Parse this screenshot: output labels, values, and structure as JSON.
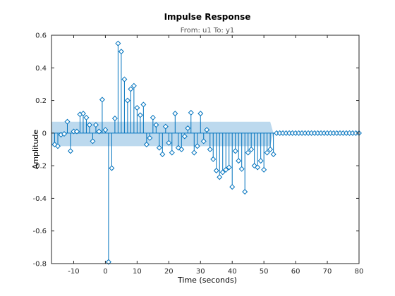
{
  "chart_data": {
    "type": "stem",
    "title": "Impulse Response",
    "subtitle": "From: u1  To: y1",
    "xlabel": "Time (seconds)",
    "ylabel": "Amplitude",
    "xlim": [
      -17,
      80
    ],
    "ylim": [
      -0.8,
      0.6
    ],
    "xticks": [
      -10,
      0,
      10,
      20,
      30,
      40,
      50,
      60,
      70,
      80
    ],
    "yticks": [
      -0.8,
      -0.6,
      -0.4,
      -0.2,
      0,
      0.2,
      0.4,
      0.6
    ],
    "xtick_labels": [
      "-10",
      "0",
      "10",
      "20",
      "30",
      "40",
      "50",
      "60",
      "70",
      "80"
    ],
    "ytick_labels": [
      "-0.8",
      "-0.6",
      "-0.4",
      "-0.2",
      "0",
      "0.2",
      "0.4",
      "0.6"
    ],
    "grid": false,
    "colors": {
      "stem": "#0072bd",
      "band": "#bcd9ee",
      "axes": "#262626"
    },
    "series": [
      {
        "x": [
          -16,
          -15,
          -14,
          -13,
          -12,
          -11,
          -10,
          -9,
          -8,
          -7,
          -6,
          -5,
          -4,
          -3,
          -2,
          -1,
          0,
          1,
          2,
          3,
          4,
          5,
          6,
          7,
          8,
          9,
          10,
          11,
          12,
          13,
          14,
          15,
          16,
          17,
          18,
          19,
          20,
          21,
          22,
          23,
          24,
          25,
          26,
          27,
          28,
          29,
          30,
          31,
          32,
          33,
          34,
          35,
          36,
          37,
          38,
          39,
          40,
          41,
          42,
          43,
          44,
          45,
          46,
          47,
          48,
          49,
          50,
          51,
          52,
          53,
          54,
          55,
          56,
          57,
          58,
          59,
          60,
          61,
          62,
          63,
          64,
          65,
          66,
          67,
          68,
          69,
          70,
          71,
          72,
          73,
          74,
          75,
          76,
          77,
          78,
          79,
          80
        ],
        "y": [
          -0.07,
          -0.08,
          -0.01,
          -0.005,
          0.07,
          -0.11,
          0.01,
          0.01,
          0.115,
          0.12,
          0.095,
          0.05,
          -0.05,
          0.05,
          0.01,
          0.205,
          0.02,
          -0.79,
          -0.215,
          0.09,
          0.55,
          0.5,
          0.33,
          0.2,
          0.27,
          0.29,
          0.155,
          0.11,
          0.175,
          -0.07,
          -0.03,
          0.095,
          0.05,
          -0.09,
          -0.13,
          0.04,
          -0.06,
          -0.12,
          0.12,
          -0.09,
          -0.1,
          -0.02,
          0.03,
          0.125,
          -0.12,
          -0.08,
          0.12,
          -0.05,
          0.02,
          -0.1,
          -0.16,
          -0.23,
          -0.27,
          -0.24,
          -0.225,
          -0.21,
          -0.33,
          -0.11,
          -0.17,
          -0.22,
          -0.36,
          -0.12,
          -0.1,
          -0.2,
          -0.21,
          -0.17,
          -0.225,
          -0.12,
          -0.1,
          -0.13,
          0.0,
          0.0,
          0.0,
          0.0,
          0.0,
          0.0,
          0.0,
          0.0,
          0.0,
          0.0,
          0.0,
          0.0,
          0.0,
          0.0,
          0.0,
          0.0,
          0.0,
          0.0,
          0.0,
          0.0,
          0.0,
          0.0,
          0.0,
          0.0,
          0.0,
          0.0,
          0.0
        ]
      }
    ],
    "confidence_region": {
      "x": [
        -17,
        52,
        53
      ],
      "upper": [
        0.07,
        0.07,
        0.0
      ],
      "lower": [
        -0.08,
        -0.08,
        0.0
      ]
    }
  }
}
